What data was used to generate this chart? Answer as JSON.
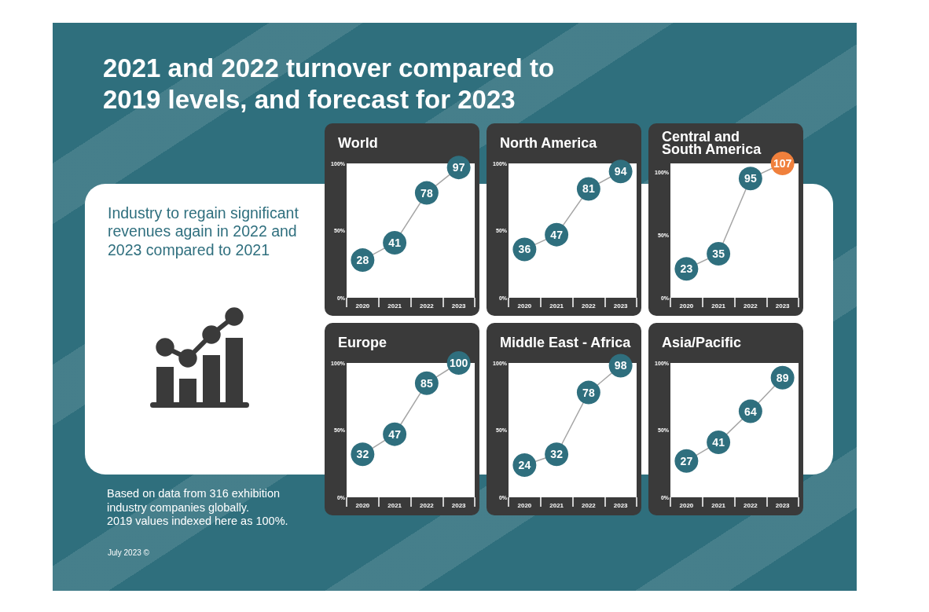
{
  "chart_data": [
    {
      "type": "other",
      "title": "2021 and 2022 turnover compared to 2019 levels, and forecast for 2023",
      "subtitle": "Industry to regain significant revenues again in 2022 and 2023 compared to 2021",
      "annotations": [
        "Based on data from 316 exhibition industry companies globally.",
        "2019 values indexed here as 100%.",
        "July 2023 ©"
      ]
    },
    {
      "type": "line",
      "title": "World",
      "categories": [
        "2020",
        "2021",
        "2022",
        "2023"
      ],
      "values": [
        28,
        41,
        78,
        97
      ],
      "color": "#a5a5a5",
      "colors": [
        "#2f6f7e",
        "#2f6f7e",
        "#2f6f7e",
        "#2f6f7e"
      ],
      "marker": "circle",
      "data_labels": true,
      "ylim": [
        0,
        100
      ],
      "yticks": [
        {
          "value": 0,
          "label": "0%"
        },
        {
          "value": 50,
          "label": "50%"
        },
        {
          "value": 100,
          "label": "100%"
        }
      ]
    },
    {
      "type": "line",
      "title": "North America",
      "categories": [
        "2020",
        "2021",
        "2022",
        "2023"
      ],
      "values": [
        36,
        47,
        81,
        94
      ],
      "color": "#a5a5a5",
      "colors": [
        "#2f6f7e",
        "#2f6f7e",
        "#2f6f7e",
        "#2f6f7e"
      ],
      "marker": "circle",
      "data_labels": true,
      "ylim": [
        0,
        100
      ],
      "yticks": [
        {
          "value": 0,
          "label": "0%"
        },
        {
          "value": 50,
          "label": "50%"
        },
        {
          "value": 100,
          "label": "100%"
        }
      ]
    },
    {
      "type": "line",
      "title": "Central and South America",
      "categories": [
        "2020",
        "2021",
        "2022",
        "2023"
      ],
      "values": [
        23,
        35,
        95,
        107
      ],
      "color": "#a5a5a5",
      "colors": [
        "#2f6f7e",
        "#2f6f7e",
        "#2f6f7e",
        "#f0803c"
      ],
      "marker": "circle",
      "data_labels": true,
      "ylim": [
        0,
        107
      ],
      "yticks": [
        {
          "value": 0,
          "label": "0%"
        },
        {
          "value": 50,
          "label": "50%"
        },
        {
          "value": 100,
          "label": "100%"
        }
      ]
    },
    {
      "type": "line",
      "title": "Europe",
      "categories": [
        "2020",
        "2021",
        "2022",
        "2023"
      ],
      "values": [
        32,
        47,
        85,
        100
      ],
      "color": "#a5a5a5",
      "colors": [
        "#2f6f7e",
        "#2f6f7e",
        "#2f6f7e",
        "#2f6f7e"
      ],
      "marker": "circle",
      "data_labels": true,
      "ylim": [
        0,
        100
      ],
      "yticks": [
        {
          "value": 0,
          "label": "0%"
        },
        {
          "value": 50,
          "label": "50%"
        },
        {
          "value": 100,
          "label": "100%"
        }
      ]
    },
    {
      "type": "line",
      "title": "Middle East - Africa",
      "categories": [
        "2020",
        "2021",
        "2022",
        "2023"
      ],
      "values": [
        24,
        32,
        78,
        98
      ],
      "color": "#a5a5a5",
      "colors": [
        "#2f6f7e",
        "#2f6f7e",
        "#2f6f7e",
        "#2f6f7e"
      ],
      "marker": "circle",
      "data_labels": true,
      "ylim": [
        0,
        100
      ],
      "yticks": [
        {
          "value": 0,
          "label": "0%"
        },
        {
          "value": 50,
          "label": "50%"
        },
        {
          "value": 100,
          "label": "100%"
        }
      ]
    },
    {
      "type": "line",
      "title": "Asia/Pacific",
      "categories": [
        "2020",
        "2021",
        "2022",
        "2023"
      ],
      "values": [
        27,
        41,
        64,
        89
      ],
      "color": "#a5a5a5",
      "colors": [
        "#2f6f7e",
        "#2f6f7e",
        "#2f6f7e",
        "#2f6f7e"
      ],
      "marker": "circle",
      "data_labels": true,
      "ylim": [
        0,
        100
      ],
      "yticks": [
        {
          "value": 0,
          "label": "0%"
        },
        {
          "value": 50,
          "label": "50%"
        },
        {
          "value": 100,
          "label": "100%"
        }
      ]
    }
  ]
}
